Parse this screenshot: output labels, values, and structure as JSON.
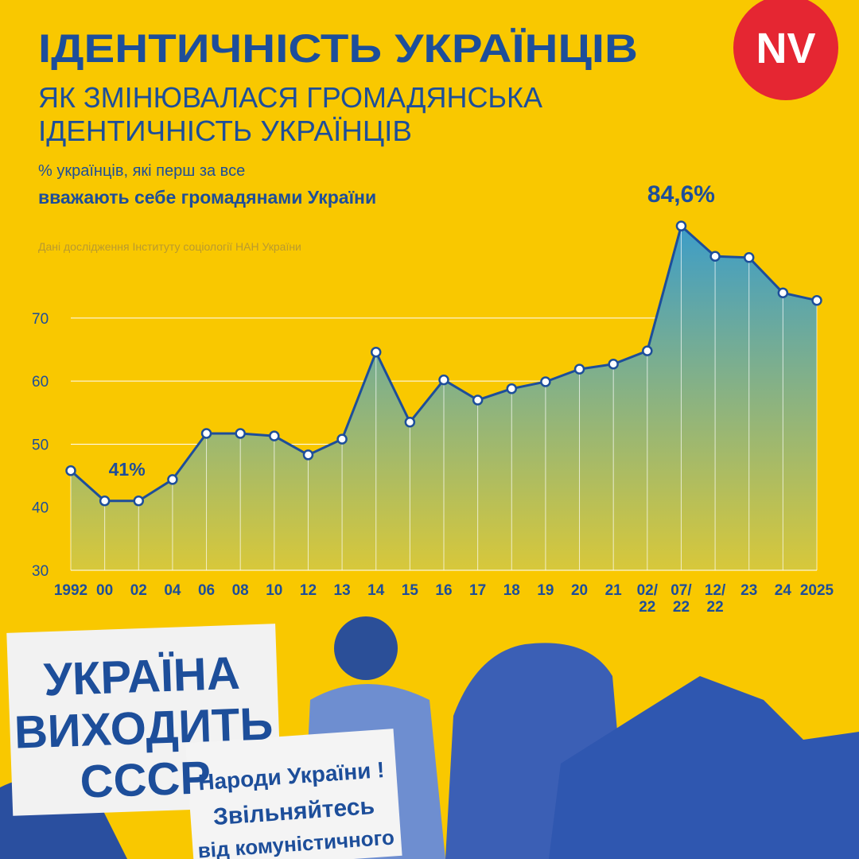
{
  "chart_data": {
    "type": "line",
    "title": "ІДЕНТИЧНІСТЬ УКРАЇНЦІВ",
    "subtitle": [
      "ЯК ЗМІНЮВАЛАСЯ ГРОМАДЯНСЬКА",
      "ІДЕНТИЧНІСТЬ УКРАЇНЦІВ"
    ],
    "description": "% українців, які перш за все",
    "description_bold": "вважають себе громадянами України",
    "source": "Дані дослідження Інституту соціології НАН України",
    "logo": "NV",
    "categories": [
      "1992",
      "00",
      "02",
      "04",
      "06",
      "08",
      "10",
      "12",
      "13",
      "14",
      "15",
      "16",
      "17",
      "18",
      "19",
      "20",
      "21",
      "02/\n22",
      "07/\n22",
      "12/\n22",
      "23",
      "24",
      "2025"
    ],
    "values": [
      45.8,
      41,
      41,
      44.4,
      51.7,
      51.7,
      51.3,
      48.3,
      50.8,
      64.6,
      53.5,
      60.2,
      57.0,
      58.8,
      59.9,
      61.9,
      62.7,
      64.8,
      84.6,
      79.8,
      79.6,
      74.0,
      72.8
    ],
    "value_labels": [
      null,
      "41%",
      null,
      null,
      null,
      null,
      null,
      null,
      null,
      null,
      null,
      null,
      null,
      null,
      null,
      null,
      null,
      null,
      "84,6%",
      null,
      null,
      null,
      null
    ],
    "color": "#1d4e9a",
    "ylim": [
      30,
      85
    ],
    "yticks": [
      30,
      40,
      50,
      60,
      70
    ],
    "grid": true,
    "placards": [
      [
        "УКРАЇНА",
        "ВИХОДИТЬ",
        "СССР"
      ],
      [
        "Народи України !",
        "Звільняйтесь",
        "від комуністичного"
      ]
    ]
  }
}
